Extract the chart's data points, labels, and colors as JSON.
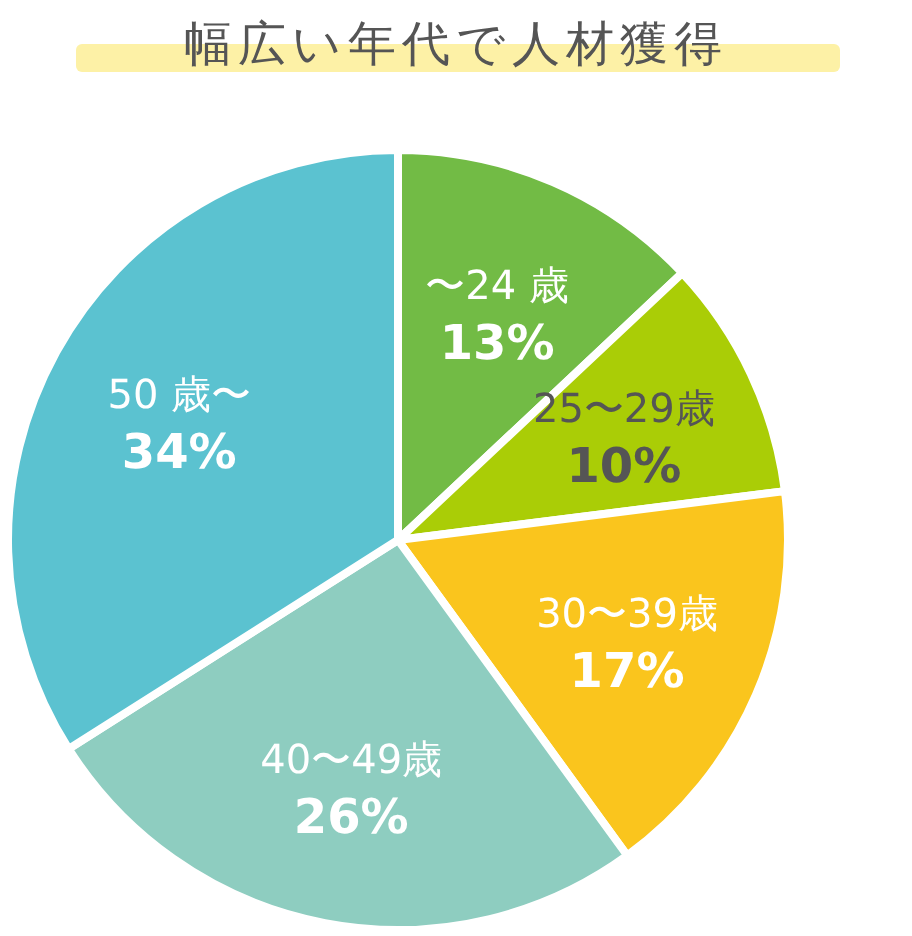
{
  "chart_data": {
    "type": "pie",
    "title": "幅広い年代で人材獲得",
    "categories": [
      "〜24 歳",
      "25〜29歳",
      "30〜39歳",
      "40〜49歳",
      "50 歳〜"
    ],
    "values": [
      13,
      10,
      17,
      26,
      34
    ],
    "value_labels": [
      "13%",
      "10%",
      "17%",
      "26%",
      "34%"
    ],
    "colors": [
      "#72bb45",
      "#aacd06",
      "#fac51d",
      "#8ecdc0",
      "#5bc2d0"
    ]
  }
}
